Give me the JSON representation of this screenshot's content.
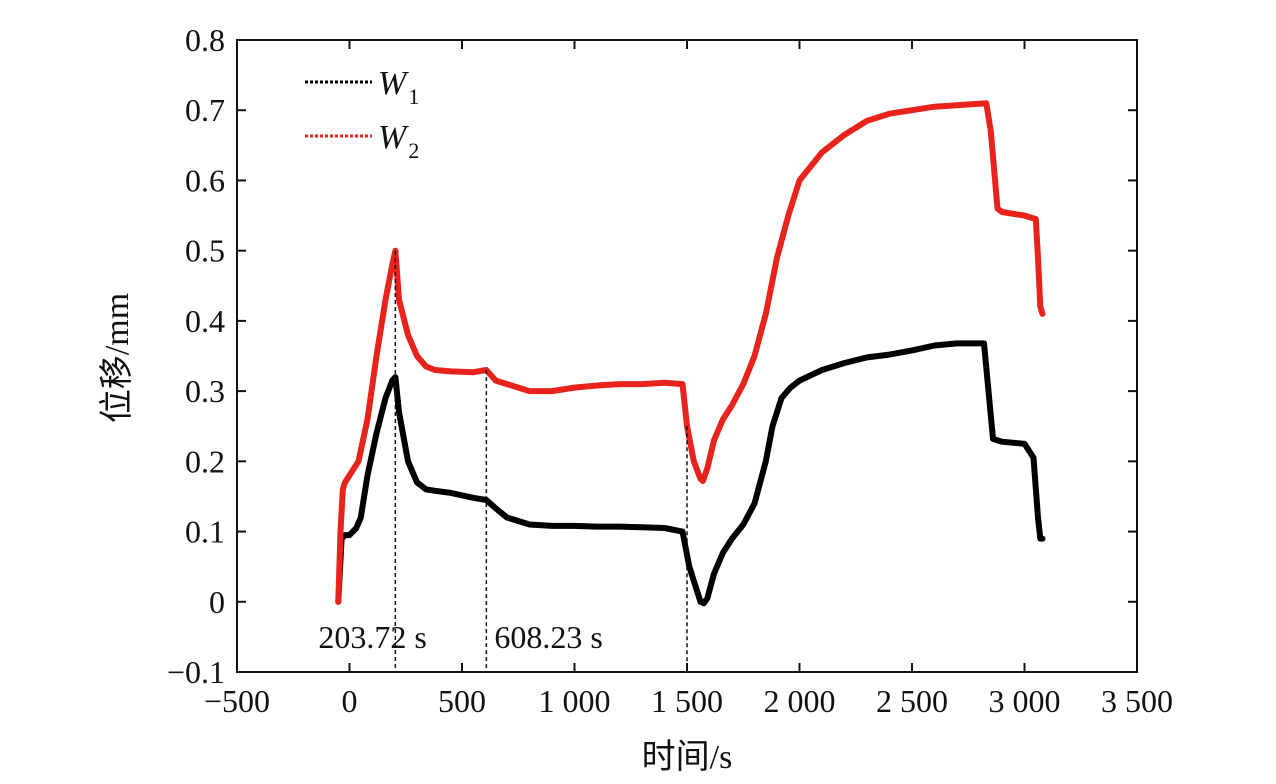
{
  "chart_data": {
    "type": "line",
    "xlabel": "时间/s",
    "ylabel": "位移/mm",
    "xlim": [
      -500,
      3500
    ],
    "ylim": [
      -0.1,
      0.8
    ],
    "xticks": [
      -500,
      0,
      500,
      1000,
      1500,
      2000,
      2500,
      3000,
      3500
    ],
    "xtick_labels": [
      "−500",
      "0",
      "500",
      "1 000",
      "1 500",
      "2 000",
      "2 500",
      "3 000",
      "3 500"
    ],
    "yticks": [
      -0.1,
      0,
      0.1,
      0.2,
      0.3,
      0.4,
      0.5,
      0.6,
      0.7,
      0.8
    ],
    "ytick_labels": [
      "−0.1",
      "0",
      "0.1",
      "0.2",
      "0.3",
      "0.4",
      "0.5",
      "0.6",
      "0.7",
      "0.8"
    ],
    "grid": false,
    "legend_position": "top-left",
    "series": [
      {
        "name": "W",
        "subscript": "1",
        "color": "#000000",
        "x": [
          -50,
          -35,
          -20,
          0,
          30,
          50,
          80,
          120,
          160,
          190,
          204,
          220,
          260,
          300,
          340,
          380,
          450,
          550,
          608,
          650,
          700,
          800,
          900,
          1000,
          1100,
          1200,
          1300,
          1400,
          1480,
          1510,
          1540,
          1560,
          1575,
          1590,
          1620,
          1660,
          1700,
          1750,
          1800,
          1850,
          1880,
          1920,
          1960,
          2000,
          2100,
          2200,
          2300,
          2400,
          2500,
          2600,
          2700,
          2820,
          2860,
          2900,
          3000,
          3040,
          3060,
          3070,
          3080
        ],
        "y": [
          0.0,
          0.09,
          0.095,
          0.095,
          0.105,
          0.12,
          0.18,
          0.24,
          0.29,
          0.315,
          0.32,
          0.27,
          0.2,
          0.17,
          0.16,
          0.158,
          0.155,
          0.148,
          0.145,
          0.133,
          0.12,
          0.11,
          0.108,
          0.108,
          0.107,
          0.107,
          0.106,
          0.105,
          0.1,
          0.05,
          0.02,
          0.0,
          -0.002,
          0.005,
          0.04,
          0.07,
          0.09,
          0.11,
          0.14,
          0.2,
          0.25,
          0.29,
          0.305,
          0.315,
          0.33,
          0.34,
          0.348,
          0.352,
          0.358,
          0.365,
          0.368,
          0.368,
          0.232,
          0.228,
          0.225,
          0.205,
          0.12,
          0.09,
          0.09
        ]
      },
      {
        "name": "W",
        "subscript": "2",
        "color": "#e8231b",
        "x": [
          -50,
          -40,
          -30,
          -20,
          0,
          40,
          80,
          120,
          160,
          190,
          204,
          220,
          260,
          300,
          340,
          380,
          450,
          550,
          608,
          650,
          700,
          800,
          900,
          1000,
          1100,
          1200,
          1300,
          1400,
          1480,
          1500,
          1530,
          1560,
          1570,
          1590,
          1620,
          1660,
          1700,
          1750,
          1800,
          1850,
          1900,
          1950,
          2000,
          2100,
          2200,
          2300,
          2400,
          2500,
          2600,
          2700,
          2830,
          2850,
          2880,
          2900,
          3000,
          3050,
          3060,
          3070,
          3080
        ],
        "y": [
          0.0,
          0.1,
          0.16,
          0.17,
          0.18,
          0.2,
          0.26,
          0.35,
          0.43,
          0.48,
          0.5,
          0.43,
          0.38,
          0.35,
          0.335,
          0.33,
          0.328,
          0.327,
          0.33,
          0.315,
          0.31,
          0.3,
          0.3,
          0.305,
          0.308,
          0.31,
          0.31,
          0.312,
          0.31,
          0.25,
          0.2,
          0.175,
          0.172,
          0.19,
          0.23,
          0.26,
          0.28,
          0.31,
          0.35,
          0.41,
          0.49,
          0.55,
          0.6,
          0.64,
          0.665,
          0.685,
          0.695,
          0.7,
          0.705,
          0.707,
          0.71,
          0.67,
          0.56,
          0.555,
          0.55,
          0.545,
          0.49,
          0.42,
          0.41
        ]
      }
    ],
    "vlines": [
      {
        "x": 203.72,
        "label": "203.72 s"
      },
      {
        "x": 608.23,
        "label": "608.23 s"
      },
      {
        "x": 1500,
        "label": ""
      }
    ]
  }
}
